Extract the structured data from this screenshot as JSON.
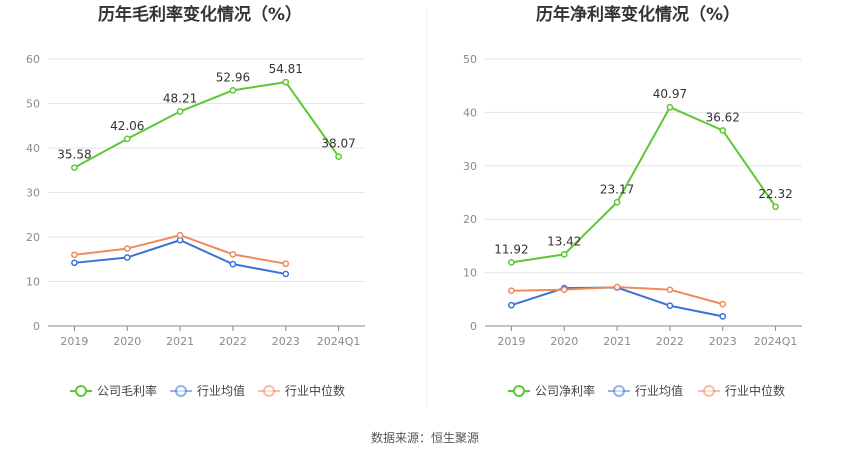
{
  "source": "数据来源：恒生聚源",
  "chart_data": [
    {
      "type": "line",
      "title": "历年毛利率变化情况（%）",
      "categories": [
        "2019",
        "2020",
        "2021",
        "2022",
        "2023",
        "2024Q1"
      ],
      "ylim": [
        0,
        60
      ],
      "yticks": [
        0,
        10,
        20,
        30,
        40,
        50,
        60
      ],
      "grid": true,
      "legend_position": "bottom-center",
      "series": [
        {
          "name": "公司毛利率",
          "color": "#5cc832",
          "values": [
            35.58,
            42.06,
            48.21,
            52.96,
            54.81,
            38.07
          ],
          "labels": [
            "35.58",
            "42.06",
            "48.21",
            "52.96",
            "54.81",
            "38.07"
          ]
        },
        {
          "name": "行业均值",
          "color": "#3a72d8",
          "values": [
            14.2,
            15.4,
            19.3,
            13.9,
            11.7,
            null
          ]
        },
        {
          "name": "行业中位数",
          "color": "#ef8a5c",
          "values": [
            16.0,
            17.4,
            20.4,
            16.1,
            14.0,
            null
          ]
        }
      ]
    },
    {
      "type": "line",
      "title": "历年净利率变化情况（%）",
      "categories": [
        "2019",
        "2020",
        "2021",
        "2022",
        "2023",
        "2024Q1"
      ],
      "ylim": [
        0,
        50
      ],
      "yticks": [
        0,
        10,
        20,
        30,
        40,
        50
      ],
      "grid": true,
      "legend_position": "bottom-center",
      "series": [
        {
          "name": "公司净利率",
          "color": "#5cc832",
          "values": [
            11.92,
            13.42,
            23.17,
            40.97,
            36.62,
            22.32
          ],
          "labels": [
            "11.92",
            "13.42",
            "23.17",
            "40.97",
            "36.62",
            "22.32"
          ]
        },
        {
          "name": "行业均值",
          "color": "#3a72d8",
          "values": [
            3.9,
            7.1,
            7.2,
            3.8,
            1.8,
            null
          ]
        },
        {
          "name": "行业中位数",
          "color": "#ef8a5c",
          "values": [
            6.6,
            6.8,
            7.3,
            6.8,
            4.1,
            null
          ]
        }
      ]
    }
  ]
}
